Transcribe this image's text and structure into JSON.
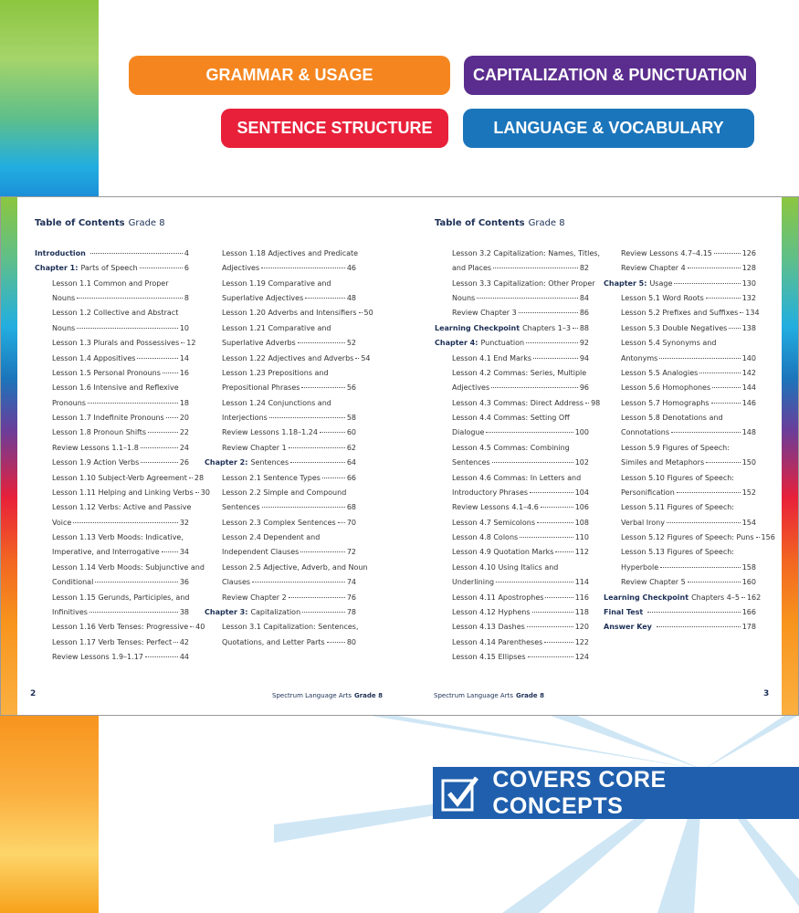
{
  "badges": [
    "GRAMMAR & USAGE",
    "CAPITALIZATION & PUNCTUATION",
    "SENTENCE STRUCTURE",
    "LANGUAGE & VOCABULARY"
  ],
  "pages": [
    {
      "title": "Table of Contents",
      "grade": "Grade 8",
      "columns": [
        [
          {
            "bold": "Introduction",
            "page": 4
          },
          {
            "bold": "Chapter 1:",
            "text": "Parts of Speech",
            "page": 6
          },
          {
            "text": "Lesson 1.1 Common and Proper"
          },
          {
            "text": "Nouns",
            "page": 8
          },
          {
            "text": "Lesson 1.2 Collective and Abstract"
          },
          {
            "text": "Nouns",
            "page": 10
          },
          {
            "text": "Lesson 1.3 Plurals and Possessives",
            "page": 12
          },
          {
            "text": "Lesson 1.4 Appositives",
            "page": 14
          },
          {
            "text": "Lesson 1.5 Personal Pronouns",
            "page": 16
          },
          {
            "text": "Lesson 1.6 Intensive and Reflexive"
          },
          {
            "text": "Pronouns",
            "page": 18
          },
          {
            "text": "Lesson 1.7 Indefinite Pronouns",
            "page": 20
          },
          {
            "text": "Lesson 1.8 Pronoun Shifts",
            "page": 22
          },
          {
            "text": "Review Lessons 1.1–1.8",
            "page": 24
          },
          {
            "text": "Lesson 1.9 Action Verbs",
            "page": 26
          },
          {
            "text": "Lesson 1.10 Subject-Verb Agreement",
            "page": 28
          },
          {
            "text": "Lesson 1.11 Helping and Linking Verbs",
            "page": 30
          },
          {
            "text": "Lesson 1.12 Verbs: Active and Passive"
          },
          {
            "text": "Voice",
            "page": 32
          },
          {
            "text": "Lesson 1.13 Verb Moods: Indicative,"
          },
          {
            "text": "Imperative, and Interrogative",
            "page": 34
          },
          {
            "text": "Lesson 1.14 Verb Moods: Subjunctive and"
          },
          {
            "text": "Conditional",
            "page": 36
          },
          {
            "text": "Lesson 1.15 Gerunds, Participles, and"
          },
          {
            "text": "Infinitives",
            "page": 38
          },
          {
            "text": "Lesson 1.16 Verb Tenses: Progressive",
            "page": 40
          },
          {
            "text": "Lesson 1.17 Verb Tenses: Perfect",
            "page": 42
          },
          {
            "text": "Review Lessons 1.9–1.17",
            "page": 44
          }
        ],
        [
          {
            "text": "Lesson 1.18 Adjectives and Predicate"
          },
          {
            "text": "Adjectives",
            "page": 46
          },
          {
            "text": "Lesson 1.19 Comparative and"
          },
          {
            "text": "Superlative Adjectives",
            "page": 48
          },
          {
            "text": "Lesson 1.20 Adverbs and Intensifiers",
            "page": 50
          },
          {
            "text": "Lesson 1.21 Comparative and"
          },
          {
            "text": "Superlative Adverbs",
            "page": 52
          },
          {
            "text": "Lesson 1.22 Adjectives and Adverbs",
            "page": 54
          },
          {
            "text": "Lesson 1.23 Prepositions and"
          },
          {
            "text": "Prepositional Phrases",
            "page": 56
          },
          {
            "text": "Lesson 1.24 Conjunctions and"
          },
          {
            "text": "Interjections",
            "page": 58
          },
          {
            "text": "Review Lessons 1.18–1.24",
            "page": 60
          },
          {
            "text": "Review Chapter 1",
            "page": 62
          },
          {
            "bold": "Chapter 2:",
            "text": "Sentences",
            "page": 64
          },
          {
            "text": "Lesson 2.1 Sentence Types",
            "page": 66
          },
          {
            "text": "Lesson 2.2 Simple and Compound"
          },
          {
            "text": "Sentences",
            "page": 68
          },
          {
            "text": "Lesson 2.3 Complex Sentences",
            "page": 70
          },
          {
            "text": "Lesson 2.4 Dependent and"
          },
          {
            "text": "Independent Clauses",
            "page": 72
          },
          {
            "text": "Lesson 2.5 Adjective, Adverb, and Noun"
          },
          {
            "text": "Clauses",
            "page": 74
          },
          {
            "text": "Review Chapter 2",
            "page": 76
          },
          {
            "bold": "Chapter 3:",
            "text": "Capitalization",
            "page": 78
          },
          {
            "text": "Lesson 3.1 Capitalization: Sentences,"
          },
          {
            "text": "Quotations, and Letter Parts",
            "page": 80
          }
        ]
      ],
      "footer": {
        "number": 2,
        "series": "Spectrum Language Arts",
        "grade": "Grade 8"
      }
    },
    {
      "title": "Table of Contents",
      "grade": "Grade 8",
      "columns": [
        [
          {
            "text": "Lesson 3.2 Capitalization: Names, Titles,"
          },
          {
            "text": "and Places",
            "page": 82
          },
          {
            "text": "Lesson 3.3 Capitalization: Other Proper"
          },
          {
            "text": "Nouns",
            "page": 84
          },
          {
            "text": "Review Chapter 3",
            "page": 86
          },
          {
            "bold": "Learning Checkpoint",
            "text": "Chapters 1–3",
            "page": 88
          },
          {
            "bold": "Chapter 4:",
            "text": "Punctuation",
            "page": 92
          },
          {
            "text": "Lesson 4.1 End Marks",
            "page": 94
          },
          {
            "text": "Lesson 4.2 Commas: Series, Multiple"
          },
          {
            "text": "Adjectives",
            "page": 96
          },
          {
            "text": "Lesson 4.3 Commas: Direct Address",
            "page": 98
          },
          {
            "text": "Lesson 4.4 Commas: Setting Off"
          },
          {
            "text": "Dialogue",
            "page": 100
          },
          {
            "text": "Lesson 4.5 Commas: Combining"
          },
          {
            "text": "Sentences",
            "page": 102
          },
          {
            "text": "Lesson 4.6 Commas: In Letters and"
          },
          {
            "text": "Introductory Phrases",
            "page": 104
          },
          {
            "text": "Review Lessons 4.1–4.6",
            "page": 106
          },
          {
            "text": "Lesson 4.7 Semicolons",
            "page": 108
          },
          {
            "text": "Lesson 4.8 Colons",
            "page": 110
          },
          {
            "text": "Lesson 4.9 Quotation Marks",
            "page": 112
          },
          {
            "text": "Lesson 4.10 Using Italics and"
          },
          {
            "text": "Underlining",
            "page": 114
          },
          {
            "text": "Lesson 4.11 Apostrophes",
            "page": 116
          },
          {
            "text": "Lesson 4.12 Hyphens",
            "page": 118
          },
          {
            "text": "Lesson 4.13 Dashes",
            "page": 120
          },
          {
            "text": "Lesson 4.14 Parentheses",
            "page": 122
          },
          {
            "text": "Lesson 4.15 Ellipses",
            "page": 124
          }
        ],
        [
          {
            "text": "Review Lessons 4.7–4.15",
            "page": 126
          },
          {
            "text": "Review Chapter 4",
            "page": 128
          },
          {
            "bold": "Chapter 5:",
            "text": "Usage",
            "page": 130
          },
          {
            "text": "Lesson 5.1 Word Roots",
            "page": 132
          },
          {
            "text": "Lesson 5.2 Prefixes and Suffixes",
            "page": 134
          },
          {
            "text": "Lesson 5.3 Double Negatives",
            "page": 138
          },
          {
            "text": "Lesson 5.4 Synonyms and"
          },
          {
            "text": "Antonyms",
            "page": 140
          },
          {
            "text": "Lesson 5.5 Analogies",
            "page": 142
          },
          {
            "text": "Lesson 5.6 Homophones",
            "page": 144
          },
          {
            "text": "Lesson 5.7 Homographs",
            "page": 146
          },
          {
            "text": "Lesson 5.8 Denotations and"
          },
          {
            "text": "Connotations",
            "page": 148
          },
          {
            "text": "Lesson 5.9 Figures of Speech:"
          },
          {
            "text": "Similes and Metaphors",
            "page": 150
          },
          {
            "text": "Lesson 5.10 Figures of Speech:"
          },
          {
            "text": "Personification",
            "page": 152
          },
          {
            "text": "Lesson 5.11 Figures of Speech:"
          },
          {
            "text": "Verbal Irony",
            "page": 154
          },
          {
            "text": "Lesson 5.12 Figures of Speech: Puns",
            "page": 156
          },
          {
            "text": "Lesson 5.13 Figures of Speech:"
          },
          {
            "text": "Hyperbole",
            "page": 158
          },
          {
            "text": "Review Chapter 5",
            "page": 160
          },
          {
            "bold": "Learning Checkpoint",
            "text": "Chapters 4–5",
            "page": 162
          },
          {
            "bold": "Final Test",
            "page": 166
          },
          {
            "bold": "Answer Key",
            "page": 178
          }
        ]
      ],
      "footer": {
        "number": 3,
        "series": "Spectrum Language Arts",
        "grade": "Grade 8"
      }
    }
  ],
  "banner": {
    "label": "COVERS CORE CONCEPTS"
  }
}
